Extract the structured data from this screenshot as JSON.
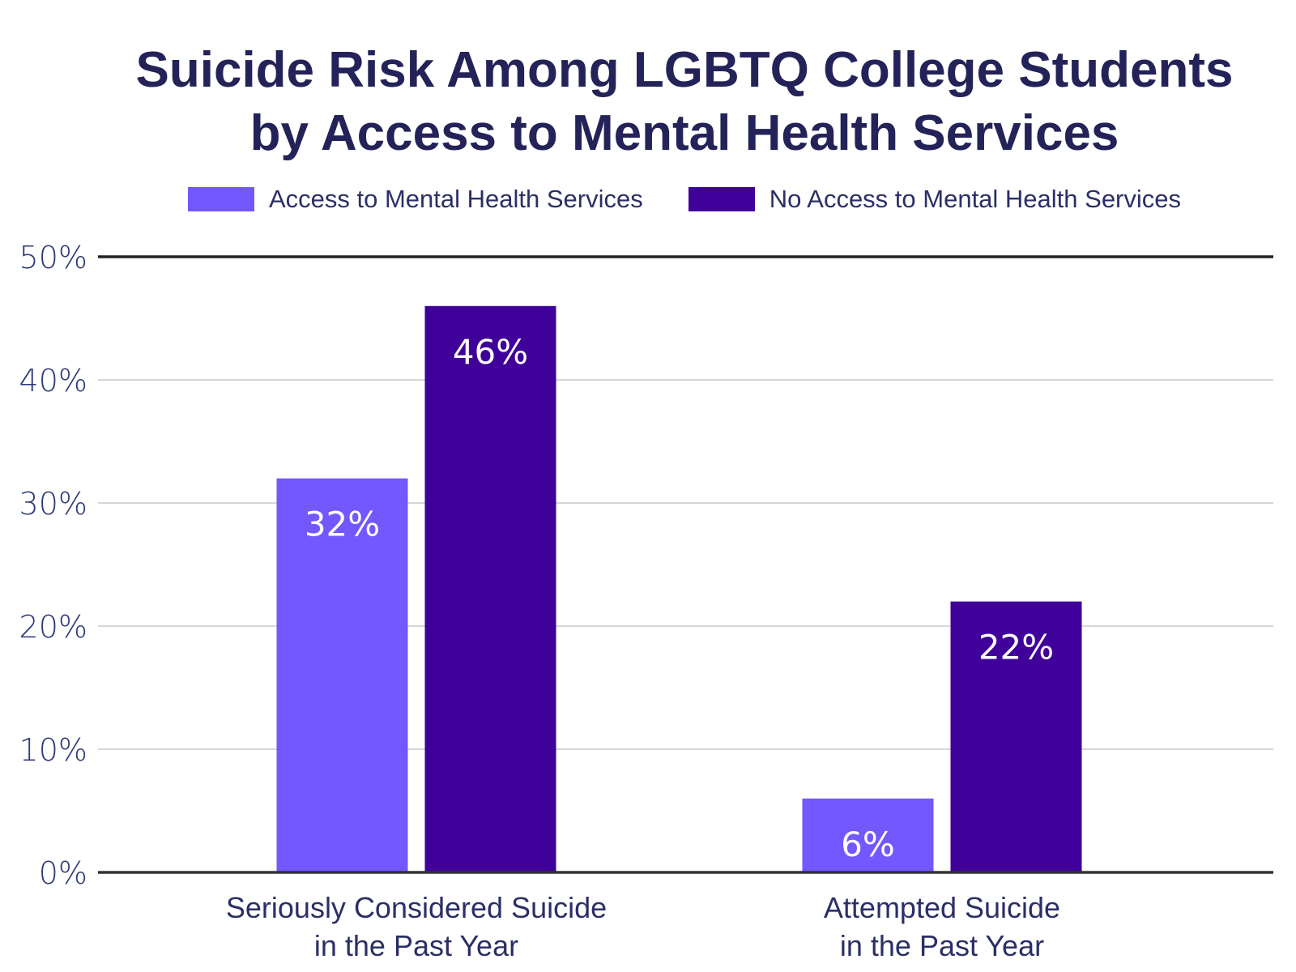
{
  "chart_data": {
    "type": "bar",
    "title_lines": [
      "Suicide Risk Among LGBTQ College Students",
      "by Access to Mental Health Services"
    ],
    "categories": [
      [
        "Seriously Considered Suicide",
        "in the Past Year"
      ],
      [
        "Attempted Suicide",
        "in the Past Year"
      ]
    ],
    "series": [
      {
        "name": "Access to Mental Health Services",
        "values": [
          32,
          6
        ],
        "labels": [
          "32%",
          "6%"
        ],
        "color": "#7357ff"
      },
      {
        "name": "No Access to Mental Health Services",
        "values": [
          46,
          22
        ],
        "labels": [
          "46%",
          "22%"
        ],
        "color": "#40009a"
      }
    ],
    "ylim": [
      0,
      50
    ],
    "yticks": [
      0,
      10,
      20,
      30,
      40,
      50
    ],
    "ytick_labels": [
      "0%",
      "10%",
      "20%",
      "30%",
      "40%",
      "50%"
    ],
    "grid": true,
    "legend_position": "top"
  }
}
